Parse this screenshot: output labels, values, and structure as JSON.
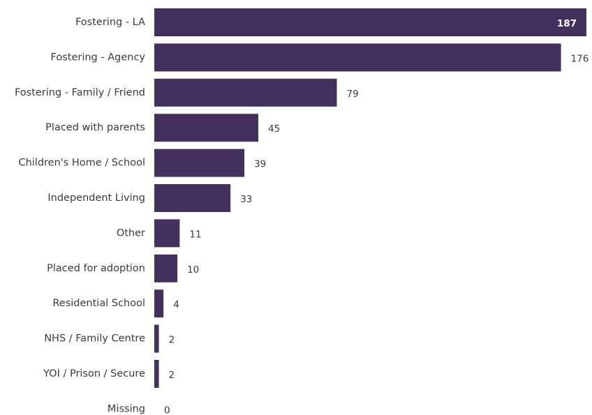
{
  "colors": {
    "bar": "#43305d",
    "category_text": "#3b3b3b",
    "value_text": "#3b3b3b",
    "value_text_inside": "#ffffff",
    "background": "#ffffff"
  },
  "chart_data": {
    "type": "bar",
    "orientation": "horizontal",
    "categories": [
      "Fostering - LA",
      "Fostering - Agency",
      "Fostering - Family / Friend",
      "Placed with parents",
      "Children's Home / School",
      "Independent Living",
      "Other",
      "Placed for adoption",
      "Residential School",
      "NHS / Family Centre",
      "YOI / Prison / Secure",
      "Missing"
    ],
    "values": [
      187,
      176,
      79,
      45,
      39,
      33,
      11,
      10,
      4,
      2,
      2,
      0
    ],
    "xlim": [
      0,
      187
    ],
    "grid": false,
    "legend": "none",
    "data_labels": true,
    "largest_label_inside": true
  }
}
